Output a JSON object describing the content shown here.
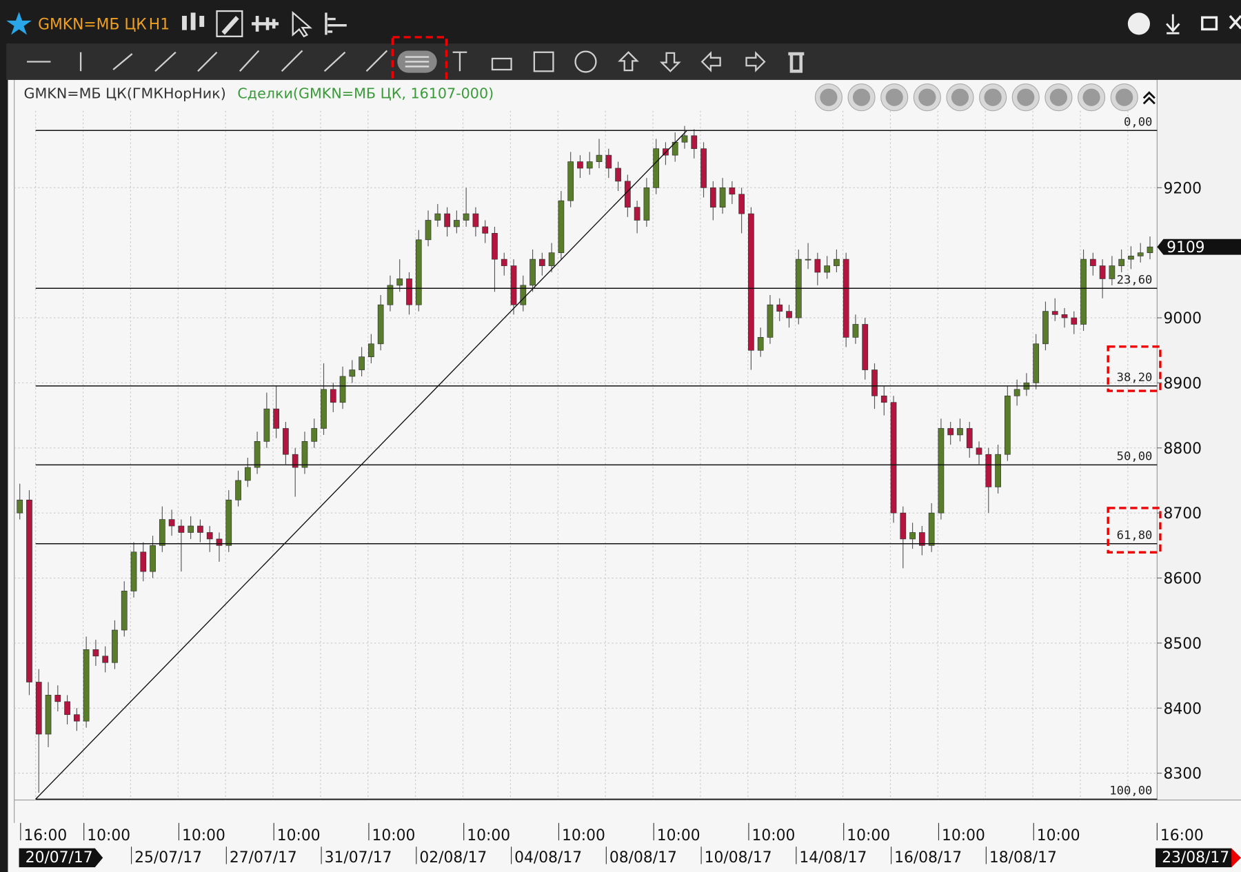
{
  "window": {
    "symbol": "GMKN=МБ ЦК",
    "interval": "H1"
  },
  "chart_data": {
    "type": "candlestick",
    "title": "GMKN=МБ ЦК(ГМКНорНик)",
    "subtitle": "Сделки(GMKN=МБ ЦК, 16107-000)",
    "ylim": [
      8255,
      9301
    ],
    "yticks": [
      8300,
      8400,
      8500,
      8600,
      8700,
      8800,
      8900,
      9000,
      9200
    ],
    "up_color": "#5a7d2b",
    "down_color": "#b3153f",
    "grid": true,
    "candles": [
      [
        8700,
        8745,
        8690,
        8720
      ],
      [
        8720,
        8735,
        8420,
        8440
      ],
      [
        8440,
        8460,
        8270,
        8360
      ],
      [
        8360,
        8440,
        8340,
        8420
      ],
      [
        8420,
        8435,
        8395,
        8410
      ],
      [
        8410,
        8420,
        8375,
        8390
      ],
      [
        8390,
        8400,
        8365,
        8380
      ],
      [
        8380,
        8510,
        8370,
        8490
      ],
      [
        8490,
        8505,
        8465,
        8480
      ],
      [
        8480,
        8495,
        8455,
        8470
      ],
      [
        8470,
        8535,
        8460,
        8520
      ],
      [
        8520,
        8595,
        8510,
        8580
      ],
      [
        8580,
        8655,
        8570,
        8640
      ],
      [
        8640,
        8655,
        8595,
        8610
      ],
      [
        8610,
        8665,
        8600,
        8650
      ],
      [
        8650,
        8710,
        8640,
        8690
      ],
      [
        8690,
        8705,
        8665,
        8680
      ],
      [
        8680,
        8690,
        8610,
        8670
      ],
      [
        8670,
        8695,
        8660,
        8680
      ],
      [
        8680,
        8690,
        8655,
        8670
      ],
      [
        8670,
        8680,
        8640,
        8660
      ],
      [
        8660,
        8670,
        8625,
        8650
      ],
      [
        8650,
        8735,
        8640,
        8720
      ],
      [
        8720,
        8765,
        8710,
        8750
      ],
      [
        8750,
        8785,
        8740,
        8770
      ],
      [
        8770,
        8825,
        8760,
        8810
      ],
      [
        8810,
        8885,
        8800,
        8860
      ],
      [
        8860,
        8895,
        8815,
        8830
      ],
      [
        8830,
        8840,
        8775,
        8790
      ],
      [
        8790,
        8800,
        8725,
        8770
      ],
      [
        8770,
        8825,
        8760,
        8810
      ],
      [
        8810,
        8845,
        8800,
        8830
      ],
      [
        8830,
        8930,
        8820,
        8890
      ],
      [
        8890,
        8900,
        8855,
        8870
      ],
      [
        8870,
        8925,
        8860,
        8910
      ],
      [
        8910,
        8935,
        8900,
        8920
      ],
      [
        8920,
        8955,
        8910,
        8940
      ],
      [
        8940,
        8975,
        8930,
        8960
      ],
      [
        8960,
        9035,
        8950,
        9020
      ],
      [
        9020,
        9065,
        9010,
        9050
      ],
      [
        9050,
        9090,
        9040,
        9060
      ],
      [
        9060,
        9070,
        9005,
        9020
      ],
      [
        9020,
        9135,
        9010,
        9120
      ],
      [
        9120,
        9165,
        9110,
        9150
      ],
      [
        9150,
        9175,
        9140,
        9160
      ],
      [
        9160,
        9170,
        9125,
        9140
      ],
      [
        9140,
        9165,
        9130,
        9150
      ],
      [
        9150,
        9200,
        9140,
        9160
      ],
      [
        9160,
        9170,
        9125,
        9140
      ],
      [
        9140,
        9150,
        9115,
        9130
      ],
      [
        9130,
        9140,
        9040,
        9090
      ],
      [
        9090,
        9100,
        9065,
        9080
      ],
      [
        9080,
        9090,
        9005,
        9020
      ],
      [
        9020,
        9065,
        9010,
        9050
      ],
      [
        9050,
        9105,
        9040,
        9090
      ],
      [
        9090,
        9100,
        9065,
        9080
      ],
      [
        9080,
        9115,
        9070,
        9100
      ],
      [
        9100,
        9195,
        9090,
        9180
      ],
      [
        9180,
        9255,
        9170,
        9240
      ],
      [
        9240,
        9250,
        9215,
        9230
      ],
      [
        9230,
        9255,
        9220,
        9240
      ],
      [
        9240,
        9275,
        9230,
        9250
      ],
      [
        9250,
        9260,
        9215,
        9230
      ],
      [
        9230,
        9240,
        9195,
        9210
      ],
      [
        9210,
        9220,
        9155,
        9170
      ],
      [
        9170,
        9180,
        9130,
        9150
      ],
      [
        9150,
        9215,
        9140,
        9200
      ],
      [
        9200,
        9275,
        9190,
        9260
      ],
      [
        9260,
        9270,
        9235,
        9250
      ],
      [
        9250,
        9285,
        9240,
        9270
      ],
      [
        9270,
        9295,
        9260,
        9280
      ],
      [
        9280,
        9290,
        9245,
        9260
      ],
      [
        9260,
        9270,
        9185,
        9200
      ],
      [
        9200,
        9210,
        9150,
        9170
      ],
      [
        9170,
        9215,
        9160,
        9200
      ],
      [
        9200,
        9210,
        9175,
        9190
      ],
      [
        9190,
        9200,
        9130,
        9160
      ],
      [
        9160,
        9170,
        8920,
        8950
      ],
      [
        8950,
        8985,
        8940,
        8970
      ],
      [
        8970,
        9035,
        8960,
        9020
      ],
      [
        9020,
        9030,
        8995,
        9010
      ],
      [
        9010,
        9020,
        8985,
        9000
      ],
      [
        9000,
        9105,
        8990,
        9090
      ],
      [
        9090,
        9115,
        9075,
        9090
      ],
      [
        9090,
        9100,
        9050,
        9070
      ],
      [
        9070,
        9095,
        9060,
        9080
      ],
      [
        9080,
        9105,
        9070,
        9090
      ],
      [
        9090,
        9100,
        8955,
        8970
      ],
      [
        8970,
        9005,
        8960,
        8990
      ],
      [
        8990,
        9000,
        8905,
        8920
      ],
      [
        8920,
        8930,
        8860,
        8880
      ],
      [
        8880,
        8895,
        8850,
        8870
      ],
      [
        8870,
        8880,
        8685,
        8700
      ],
      [
        8700,
        8710,
        8615,
        8660
      ],
      [
        8660,
        8685,
        8645,
        8670
      ],
      [
        8670,
        8680,
        8635,
        8650
      ],
      [
        8650,
        8715,
        8640,
        8700
      ],
      [
        8700,
        8845,
        8690,
        8830
      ],
      [
        8830,
        8840,
        8805,
        8820
      ],
      [
        8820,
        8845,
        8810,
        8830
      ],
      [
        8830,
        8840,
        8785,
        8800
      ],
      [
        8800,
        8810,
        8775,
        8790
      ],
      [
        8790,
        8800,
        8700,
        8740
      ],
      [
        8740,
        8805,
        8730,
        8790
      ],
      [
        8790,
        8895,
        8780,
        8880
      ],
      [
        8880,
        8905,
        8865,
        8890
      ],
      [
        8890,
        8915,
        8880,
        8900
      ],
      [
        8900,
        8975,
        8890,
        8960
      ],
      [
        8960,
        9025,
        8950,
        9010
      ],
      [
        9010,
        9030,
        8995,
        9005
      ],
      [
        9005,
        9015,
        8985,
        9000
      ],
      [
        9000,
        9010,
        8975,
        8990
      ],
      [
        8990,
        9105,
        8980,
        9090
      ],
      [
        9090,
        9100,
        9065,
        9080
      ],
      [
        9080,
        9090,
        9030,
        9060
      ],
      [
        9060,
        9095,
        9050,
        9080
      ],
      [
        9080,
        9105,
        9070,
        9090
      ],
      [
        9090,
        9110,
        9075,
        9095
      ],
      [
        9095,
        9115,
        9085,
        9100
      ],
      [
        9100,
        9125,
        9090,
        9109
      ]
    ],
    "trendline": [
      8260,
      9288
    ],
    "fib_levels": [
      {
        "value": 0,
        "label": "0,00"
      },
      {
        "value": 23.6,
        "label": "23,60"
      },
      {
        "value": 38.2,
        "label": "38,20"
      },
      {
        "value": 50,
        "label": "50,00"
      },
      {
        "value": 61.8,
        "label": "61,80"
      },
      {
        "value": 100,
        "label": "100,00"
      }
    ],
    "last_price": 9109,
    "time_labels": [
      "16:00",
      "10:00",
      "10:00",
      "10:00",
      "10:00",
      "10:00",
      "10:00",
      "10:00",
      "10:00",
      "10:00",
      "10:00",
      "10:00",
      "16:00"
    ],
    "date_labels": [
      "20/07/17",
      "25/07/17",
      "27/07/17",
      "31/07/17",
      "02/08/17",
      "04/08/17",
      "08/08/17",
      "10/08/17",
      "14/08/17",
      "16/08/17",
      "18/08/17",
      "23/08/17"
    ]
  }
}
